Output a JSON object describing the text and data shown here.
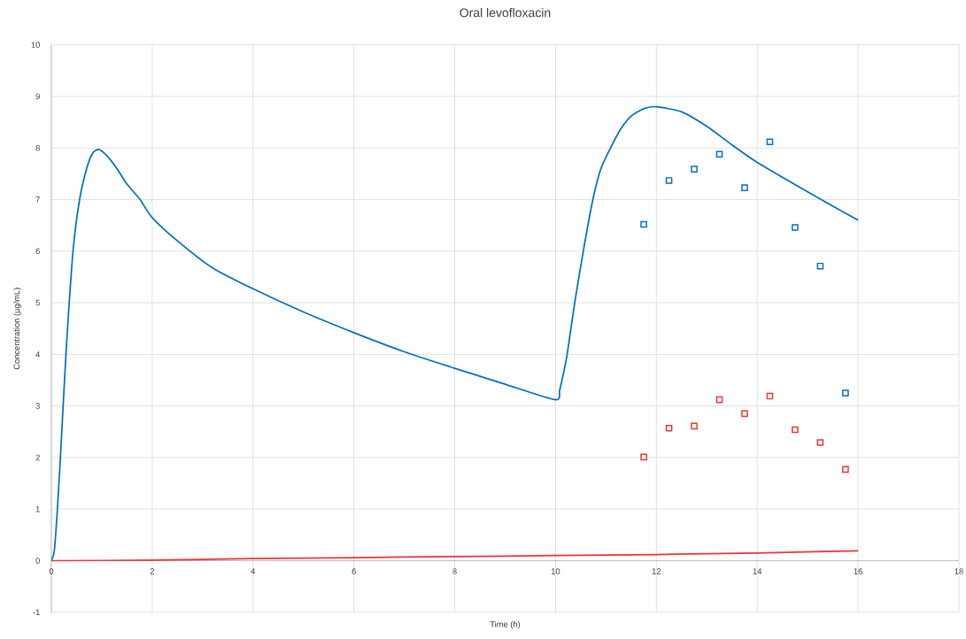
{
  "chart_data": {
    "type": "line",
    "title": "Oral levofloxacin",
    "xlabel": "Time (h)",
    "ylabel": "Concentration (µg/mL)",
    "xlim": [
      0,
      18
    ],
    "ylim": [
      -1,
      10
    ],
    "xticks": [
      0,
      2,
      4,
      6,
      8,
      10,
      12,
      14,
      16,
      18
    ],
    "yticks": [
      -1,
      0,
      1,
      2,
      3,
      4,
      5,
      6,
      7,
      8,
      9,
      10
    ],
    "grid": true,
    "legend": false,
    "series": [
      {
        "color": "#0070c0",
        "x": [
          0,
          0.06,
          0.12,
          0.18,
          0.29,
          0.43,
          0.56,
          0.7,
          0.82,
          0.94,
          1.1,
          1.3,
          1.5,
          1.76,
          2,
          2.5,
          3.19,
          4,
          5,
          6,
          7,
          8,
          9,
          10,
          10.08,
          10.15,
          10.23,
          10.38,
          10.55,
          10.74,
          10.9,
          11.09,
          11.3,
          11.5,
          11.75,
          12,
          12.5,
          13,
          13.5,
          14,
          15,
          16
        ],
        "values": [
          0,
          0.2,
          1,
          2,
          4,
          6,
          7,
          7.6,
          7.9,
          7.97,
          7.85,
          7.6,
          7.3,
          7,
          6.65,
          6.2,
          5.68,
          5.27,
          4.82,
          4.42,
          4.05,
          3.73,
          3.42,
          3.12,
          3.3,
          3.6,
          4,
          5,
          6,
          7,
          7.6,
          8,
          8.38,
          8.62,
          8.76,
          8.8,
          8.7,
          8.42,
          8.06,
          7.72,
          7.15,
          6.6
        ]
      },
      {
        "color": "#ee3333",
        "x": [
          0,
          2,
          4,
          6,
          8,
          10,
          12,
          14,
          16
        ],
        "values": [
          0,
          0.01,
          0.04,
          0.06,
          0.08,
          0.1,
          0.12,
          0.15,
          0.19
        ]
      },
      {
        "type": "scatter",
        "marker": "square",
        "color": "#0070c0",
        "x": [
          11.75,
          12.25,
          12.75,
          13.25,
          13.75,
          14.25,
          14.75,
          15.25,
          15.75
        ],
        "values": [
          6.52,
          7.37,
          7.59,
          7.88,
          7.23,
          8.12,
          6.46,
          5.71,
          3.25
        ]
      },
      {
        "type": "scatter",
        "marker": "square",
        "color": "#ee3333",
        "x": [
          11.75,
          12.25,
          12.75,
          13.25,
          13.75,
          14.25,
          14.75,
          15.25,
          15.75
        ],
        "values": [
          2.01,
          2.57,
          2.61,
          3.12,
          2.85,
          3.19,
          2.54,
          2.29,
          1.77
        ]
      }
    ]
  }
}
